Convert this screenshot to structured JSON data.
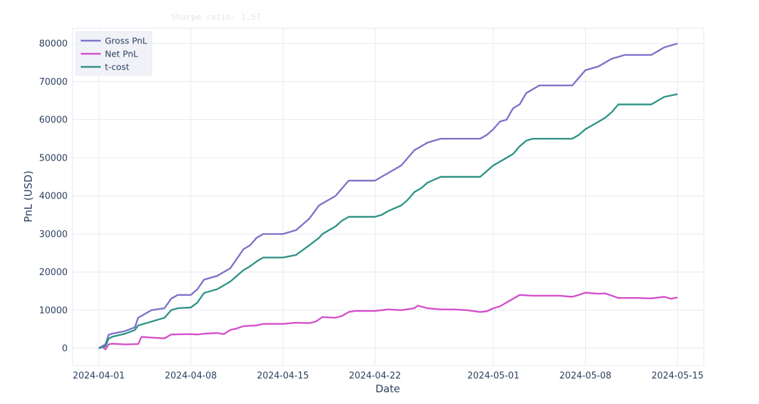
{
  "chart_data": {
    "type": "line",
    "subtitle": "Sharpe ratio: 1.57",
    "xlabel": "Date",
    "ylabel": "PnL (USD)",
    "x_tick_labels": [
      "2024-04-01",
      "2024-04-08",
      "2024-04-15",
      "2024-04-22",
      "2024-05-01",
      "2024-05-08",
      "2024-05-15"
    ],
    "x_tick_dates": [
      "2024-04-01",
      "2024-04-08",
      "2024-04-15",
      "2024-04-22",
      "2024-05-01",
      "2024-05-08",
      "2024-05-15"
    ],
    "y_ticks": [
      0,
      10000,
      20000,
      30000,
      40000,
      50000,
      60000,
      70000,
      80000
    ],
    "y_tick_labels": [
      "0",
      "10000",
      "20000",
      "30000",
      "40000",
      "50000",
      "60000",
      "70000",
      "80000"
    ],
    "xlim": [
      "2024-03-30",
      "2024-05-17"
    ],
    "ylim": [
      -4500,
      84000
    ],
    "grid": true,
    "legend_position": "top-left",
    "series": [
      {
        "name": "Gross PnL",
        "color": "#7b73c8",
        "points": [
          [
            "2024-04-01",
            0
          ],
          [
            "2024-04-01T12",
            1000
          ],
          [
            "2024-04-01T18",
            3500
          ],
          [
            "2024-04-02",
            3800
          ],
          [
            "2024-04-03",
            4500
          ],
          [
            "2024-04-03T18",
            5500
          ],
          [
            "2024-04-04",
            8000
          ],
          [
            "2024-04-04T12",
            9000
          ],
          [
            "2024-04-05",
            10000
          ],
          [
            "2024-04-06",
            10500
          ],
          [
            "2024-04-06T12",
            13000
          ],
          [
            "2024-04-07",
            14000
          ],
          [
            "2024-04-08",
            14000
          ],
          [
            "2024-04-08T12",
            15500
          ],
          [
            "2024-04-09",
            18000
          ],
          [
            "2024-04-10",
            19000
          ],
          [
            "2024-04-10T12",
            20000
          ],
          [
            "2024-04-11",
            21000
          ],
          [
            "2024-04-11T12",
            23500
          ],
          [
            "2024-04-12",
            26000
          ],
          [
            "2024-04-12T12",
            27000
          ],
          [
            "2024-04-13",
            29000
          ],
          [
            "2024-04-13T12",
            30000
          ],
          [
            "2024-04-15",
            30000
          ],
          [
            "2024-04-16",
            31000
          ],
          [
            "2024-04-17",
            34000
          ],
          [
            "2024-04-17T18",
            37500
          ],
          [
            "2024-04-18",
            38000
          ],
          [
            "2024-04-19",
            40000
          ],
          [
            "2024-04-19T12",
            42000
          ],
          [
            "2024-04-20",
            44000
          ],
          [
            "2024-04-22",
            44000
          ],
          [
            "2024-04-22T12",
            45000
          ],
          [
            "2024-04-23",
            46000
          ],
          [
            "2024-04-24",
            48000
          ],
          [
            "2024-04-24T12",
            50000
          ],
          [
            "2024-04-25",
            52000
          ],
          [
            "2024-04-25T12",
            53000
          ],
          [
            "2024-04-26",
            54000
          ],
          [
            "2024-04-27",
            55000
          ],
          [
            "2024-04-30",
            55000
          ],
          [
            "2024-04-30T12",
            56000
          ],
          [
            "2024-05-01",
            57500
          ],
          [
            "2024-05-01T12",
            59500
          ],
          [
            "2024-05-02",
            60000
          ],
          [
            "2024-05-02T12",
            63000
          ],
          [
            "2024-05-03",
            64000
          ],
          [
            "2024-05-03T12",
            67000
          ],
          [
            "2024-05-04",
            68000
          ],
          [
            "2024-05-04T12",
            69000
          ],
          [
            "2024-05-07",
            69000
          ],
          [
            "2024-05-07T12",
            71000
          ],
          [
            "2024-05-08",
            73000
          ],
          [
            "2024-05-09",
            74000
          ],
          [
            "2024-05-09T12",
            75000
          ],
          [
            "2024-05-10",
            76000
          ],
          [
            "2024-05-11",
            77000
          ],
          [
            "2024-05-13",
            77000
          ],
          [
            "2024-05-13T12",
            78000
          ],
          [
            "2024-05-14",
            79000
          ],
          [
            "2024-05-14T12",
            79500
          ],
          [
            "2024-05-15",
            80000
          ]
        ]
      },
      {
        "name": "Net PnL",
        "color": "#d44fc9",
        "points": [
          [
            "2024-04-01",
            0
          ],
          [
            "2024-04-01T06",
            500
          ],
          [
            "2024-04-01T12",
            -300
          ],
          [
            "2024-04-01T18",
            1000
          ],
          [
            "2024-04-02",
            1200
          ],
          [
            "2024-04-03",
            1000
          ],
          [
            "2024-04-04",
            1100
          ],
          [
            "2024-04-04T06",
            3000
          ],
          [
            "2024-04-05",
            2800
          ],
          [
            "2024-04-06",
            2600
          ],
          [
            "2024-04-06T12",
            3600
          ],
          [
            "2024-04-08",
            3700
          ],
          [
            "2024-04-08T12",
            3600
          ],
          [
            "2024-04-09",
            3800
          ],
          [
            "2024-04-10",
            4000
          ],
          [
            "2024-04-10T12",
            3700
          ],
          [
            "2024-04-11",
            4800
          ],
          [
            "2024-04-11T12",
            5200
          ],
          [
            "2024-04-12",
            5800
          ],
          [
            "2024-04-13",
            6000
          ],
          [
            "2024-04-13T12",
            6400
          ],
          [
            "2024-04-15",
            6400
          ],
          [
            "2024-04-16",
            6700
          ],
          [
            "2024-04-17",
            6600
          ],
          [
            "2024-04-17T12",
            7000
          ],
          [
            "2024-04-18",
            8200
          ],
          [
            "2024-04-19",
            8000
          ],
          [
            "2024-04-19T12",
            8500
          ],
          [
            "2024-04-20",
            9500
          ],
          [
            "2024-04-20T12",
            9800
          ],
          [
            "2024-04-22",
            9800
          ],
          [
            "2024-04-23",
            10200
          ],
          [
            "2024-04-24",
            10000
          ],
          [
            "2024-04-25",
            10500
          ],
          [
            "2024-04-25T06",
            11200
          ],
          [
            "2024-04-26",
            10500
          ],
          [
            "2024-04-27",
            10200
          ],
          [
            "2024-04-28",
            10200
          ],
          [
            "2024-04-29",
            10000
          ],
          [
            "2024-04-30",
            9500
          ],
          [
            "2024-04-30T12",
            9700
          ],
          [
            "2024-05-01",
            10500
          ],
          [
            "2024-05-01T12",
            11000
          ],
          [
            "2024-05-02",
            12000
          ],
          [
            "2024-05-02T12",
            13000
          ],
          [
            "2024-05-03",
            14000
          ],
          [
            "2024-05-04",
            13800
          ],
          [
            "2024-05-06",
            13800
          ],
          [
            "2024-05-07",
            13500
          ],
          [
            "2024-05-07T12",
            14000
          ],
          [
            "2024-05-08",
            14600
          ],
          [
            "2024-05-09",
            14300
          ],
          [
            "2024-05-09T12",
            14400
          ],
          [
            "2024-05-10",
            13800
          ],
          [
            "2024-05-10T12",
            13200
          ],
          [
            "2024-05-12",
            13200
          ],
          [
            "2024-05-13",
            13100
          ],
          [
            "2024-05-14",
            13500
          ],
          [
            "2024-05-14T12",
            13000
          ],
          [
            "2024-05-15",
            13300
          ]
        ]
      },
      {
        "name": "t-cost",
        "color": "#2e9386",
        "points": [
          [
            "2024-04-01",
            0
          ],
          [
            "2024-04-01T12",
            500
          ],
          [
            "2024-04-01T18",
            2500
          ],
          [
            "2024-04-02",
            3000
          ],
          [
            "2024-04-03",
            3800
          ],
          [
            "2024-04-03T18",
            4800
          ],
          [
            "2024-04-04",
            6000
          ],
          [
            "2024-04-05",
            7000
          ],
          [
            "2024-04-06",
            8000
          ],
          [
            "2024-04-06T12",
            10000
          ],
          [
            "2024-04-07",
            10500
          ],
          [
            "2024-04-08",
            10700
          ],
          [
            "2024-04-08T12",
            12000
          ],
          [
            "2024-04-09",
            14500
          ],
          [
            "2024-04-10",
            15500
          ],
          [
            "2024-04-10T12",
            16500
          ],
          [
            "2024-04-11",
            17500
          ],
          [
            "2024-04-11T12",
            19000
          ],
          [
            "2024-04-12",
            20500
          ],
          [
            "2024-04-12T12",
            21500
          ],
          [
            "2024-04-13",
            22800
          ],
          [
            "2024-04-13T12",
            23800
          ],
          [
            "2024-04-15",
            23800
          ],
          [
            "2024-04-16",
            24500
          ],
          [
            "2024-04-17",
            27000
          ],
          [
            "2024-04-17T18",
            29000
          ],
          [
            "2024-04-18",
            30000
          ],
          [
            "2024-04-19",
            32000
          ],
          [
            "2024-04-19T12",
            33500
          ],
          [
            "2024-04-20",
            34500
          ],
          [
            "2024-04-22",
            34500
          ],
          [
            "2024-04-22T12",
            35000
          ],
          [
            "2024-04-23",
            36000
          ],
          [
            "2024-04-24",
            37500
          ],
          [
            "2024-04-24T12",
            39000
          ],
          [
            "2024-04-25",
            41000
          ],
          [
            "2024-04-25T12",
            42000
          ],
          [
            "2024-04-26",
            43500
          ],
          [
            "2024-04-27",
            45000
          ],
          [
            "2024-04-30",
            45000
          ],
          [
            "2024-04-30T12",
            46500
          ],
          [
            "2024-05-01",
            48000
          ],
          [
            "2024-05-01T12",
            49000
          ],
          [
            "2024-05-02",
            50000
          ],
          [
            "2024-05-02T12",
            51000
          ],
          [
            "2024-05-03",
            53000
          ],
          [
            "2024-05-03T12",
            54500
          ],
          [
            "2024-05-04",
            55000
          ],
          [
            "2024-05-07",
            55000
          ],
          [
            "2024-05-07T12",
            56000
          ],
          [
            "2024-05-08",
            57500
          ],
          [
            "2024-05-08T12",
            58500
          ],
          [
            "2024-05-09",
            59500
          ],
          [
            "2024-05-09T12",
            60500
          ],
          [
            "2024-05-10",
            62000
          ],
          [
            "2024-05-10T12",
            64000
          ],
          [
            "2024-05-13",
            64000
          ],
          [
            "2024-05-13T12",
            65000
          ],
          [
            "2024-05-14",
            66000
          ],
          [
            "2024-05-15",
            66700
          ]
        ]
      }
    ]
  }
}
